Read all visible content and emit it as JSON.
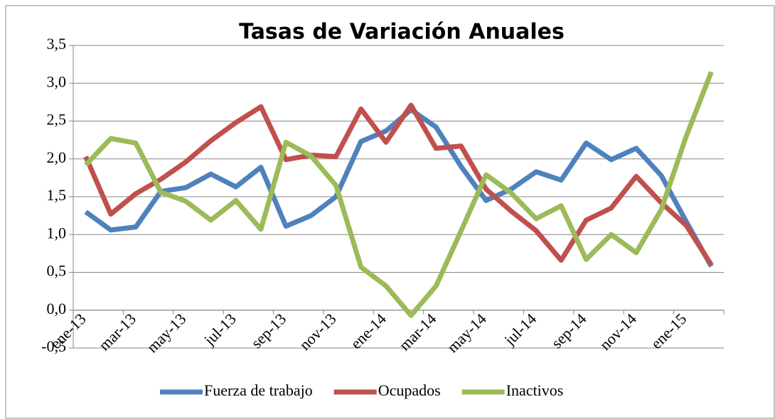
{
  "chart_data": {
    "type": "line",
    "title": "Tasas de Variación Anuales",
    "categories": [
      "ene-13",
      null,
      "mar-13",
      null,
      "may-13",
      null,
      "jul-13",
      null,
      "sep-13",
      null,
      "nov-13",
      null,
      "ene-14",
      null,
      "mar-14",
      null,
      "may-14",
      null,
      "jul-14",
      null,
      "sep-14",
      null,
      "nov-14",
      null,
      "ene-15",
      null
    ],
    "series": [
      {
        "name": "Fuerza de trabajo",
        "color": "#4f81bd",
        "values": [
          1.3,
          1.06,
          1.1,
          1.57,
          1.62,
          1.8,
          1.63,
          1.89,
          1.11,
          1.25,
          1.5,
          2.23,
          2.37,
          2.65,
          2.42,
          1.9,
          1.45,
          1.6,
          1.83,
          1.72,
          2.21,
          1.99,
          2.14,
          1.78,
          1.17,
          0.58
        ]
      },
      {
        "name": "Ocupados",
        "color": "#c0504d",
        "values": [
          2.03,
          1.27,
          1.54,
          1.73,
          1.96,
          2.24,
          2.48,
          2.69,
          1.99,
          2.05,
          2.03,
          2.66,
          2.22,
          2.71,
          2.14,
          2.17,
          1.6,
          1.31,
          1.05,
          0.66,
          1.19,
          1.35,
          1.77,
          1.42,
          1.12,
          0.6
        ]
      },
      {
        "name": "Inactivos",
        "color": "#9bbb59",
        "values": [
          1.92,
          2.27,
          2.21,
          1.56,
          1.44,
          1.19,
          1.45,
          1.07,
          2.22,
          2.04,
          1.65,
          0.57,
          0.32,
          -0.07,
          0.32,
          1.05,
          1.79,
          1.55,
          1.21,
          1.38,
          0.67,
          1.0,
          0.76,
          1.33,
          2.3,
          3.15
        ]
      }
    ],
    "ylim": [
      -0.5,
      3.5
    ],
    "yticks": [
      {
        "value": -0.5,
        "label": "-0,5"
      },
      {
        "value": 0,
        "label": "0,0"
      },
      {
        "value": 0.5,
        "label": "0,5"
      },
      {
        "value": 1,
        "label": "1,0"
      },
      {
        "value": 1.5,
        "label": "1,5"
      },
      {
        "value": 2,
        "label": "2,0"
      },
      {
        "value": 2.5,
        "label": "2,5"
      },
      {
        "value": 3,
        "label": "3,0"
      },
      {
        "value": 3.5,
        "label": "3,5"
      }
    ],
    "grid": true,
    "legend": "bottom"
  }
}
